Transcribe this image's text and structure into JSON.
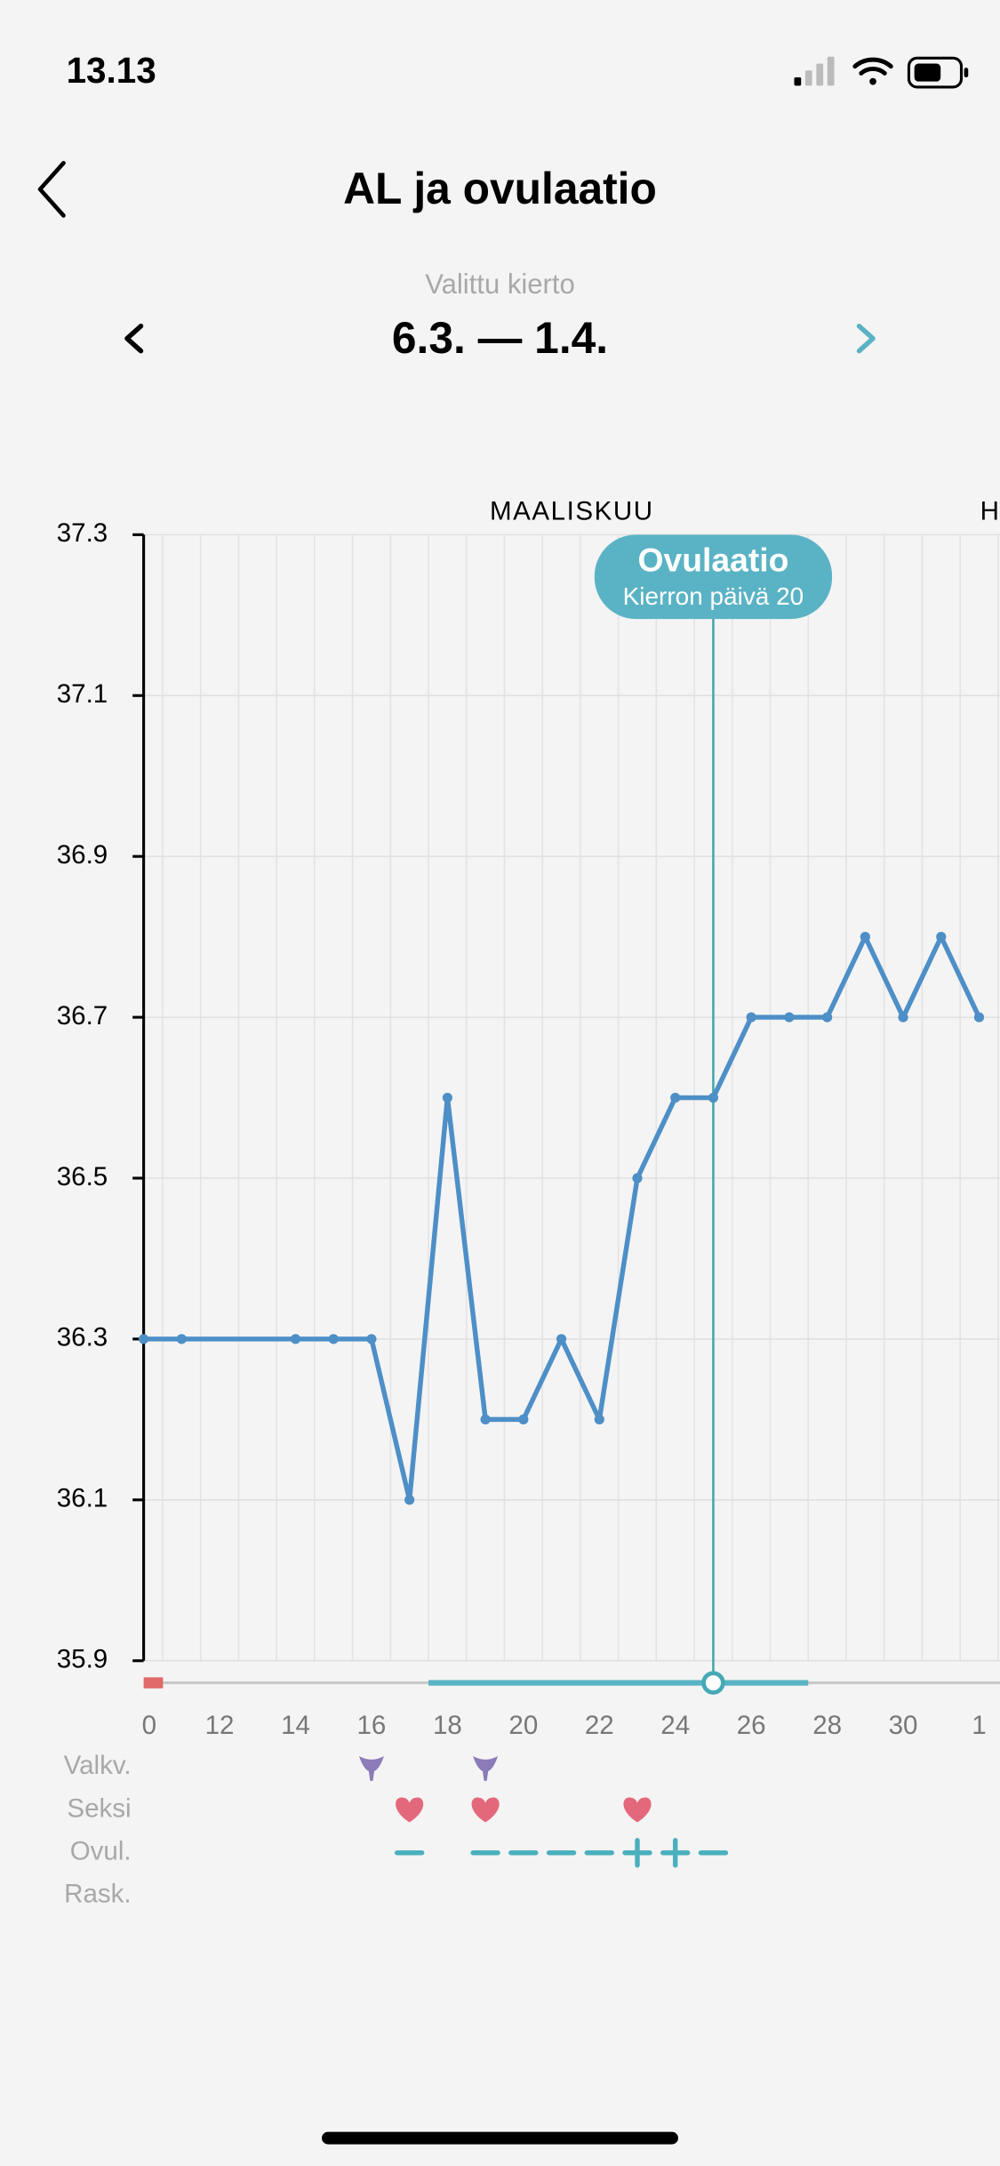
{
  "status_bar": {
    "time": "13.13"
  },
  "header": {
    "title": "AL ja ovulaatio"
  },
  "cycle_selector": {
    "label": "Valittu kierto",
    "range": "6.3. — 1.4."
  },
  "chart_data": {
    "type": "line",
    "x": [
      10,
      11,
      14,
      15,
      16,
      17,
      18,
      19,
      20,
      21,
      22,
      23,
      24,
      25,
      26,
      27,
      28,
      29,
      30,
      31,
      32
    ],
    "values": [
      36.3,
      36.3,
      36.3,
      36.3,
      36.3,
      36.1,
      36.6,
      36.2,
      36.2,
      36.3,
      36.2,
      36.5,
      36.6,
      36.6,
      36.7,
      36.7,
      36.7,
      36.8,
      36.7,
      36.8,
      36.7
    ],
    "color": "#4d8fc6",
    "xlim": [
      10,
      32.55
    ],
    "xticks": [
      {
        "value": 10,
        "label": "0"
      },
      12,
      14,
      16,
      18,
      20,
      22,
      24,
      26,
      28,
      30,
      {
        "value": 32,
        "label": "1"
      }
    ],
    "ylim": [
      35.9,
      37.3
    ],
    "yticks": [
      35.9,
      36.1,
      36.3,
      36.5,
      36.7,
      36.9,
      37.1,
      37.3
    ],
    "grid": true,
    "month_labels": [
      "MAALISKUU",
      "H"
    ],
    "annotation": {
      "x": 25,
      "title": "Ovulaatio",
      "subtitle": "Kierron päivä 20",
      "color": "#5ab3c4"
    }
  },
  "tracking_rows": [
    {
      "label": "Valkv.",
      "mucus": [
        16,
        19
      ]
    },
    {
      "label": "Seksi",
      "sex": [
        17,
        19,
        23
      ]
    },
    {
      "label": "Ovul.",
      "negative": [
        17,
        19,
        20,
        21,
        22,
        25
      ],
      "positive": [
        23,
        24
      ]
    },
    {
      "label": "Rask."
    }
  ]
}
